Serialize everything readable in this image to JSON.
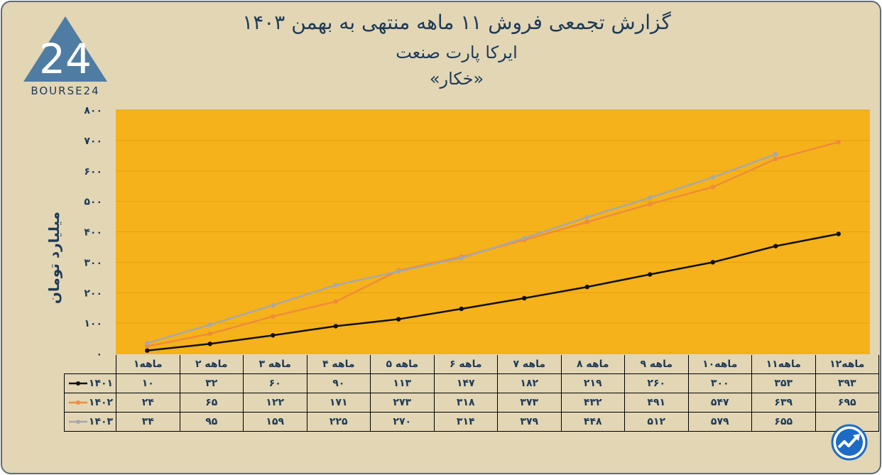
{
  "header": {
    "line1": "گزارش تجمعی فروش ۱۱ ماهه منتهی به بهمن ۱۴۰۳",
    "line2": "ایرکا پارت صنعت",
    "line3": "«خکار»"
  },
  "logo": {
    "text": "BOURSE24",
    "mark": "24",
    "icon": "bourse24-logo-icon"
  },
  "badge": {
    "icon": "trend-arrow-icon"
  },
  "colors": {
    "background": "#e2d6b5",
    "plot": "#f5b21b",
    "s1401": "#111111",
    "s1402": "#ef8c3a",
    "s1403": "#a8a8a8",
    "text": "#1f3a57"
  },
  "chart_data": {
    "type": "line",
    "ylabel": "میلیارد تومان",
    "ylim": [
      0,
      800
    ],
    "yticks": [
      "۰",
      "۱۰۰",
      "۲۰۰",
      "۳۰۰",
      "۴۰۰",
      "۵۰۰",
      "۶۰۰",
      "۷۰۰",
      "۸۰۰"
    ],
    "categories": [
      "۱ماهه",
      "۲ ماهه",
      "۳ ماهه",
      "۴ ماهه",
      "۵ ماهه",
      "۶ ماهه",
      "۷ ماهه",
      "۸ ماهه",
      "۹ ماهه",
      "۱۰ماهه",
      "۱۱ماهه",
      "۱۲ماهه"
    ],
    "series": [
      {
        "name": "۱۴۰۱",
        "values": [
          10,
          32,
          60,
          90,
          113,
          147,
          182,
          219,
          260,
          300,
          353,
          393
        ],
        "labels": [
          "۱۰",
          "۳۲",
          "۶۰",
          "۹۰",
          "۱۱۳",
          "۱۴۷",
          "۱۸۲",
          "۲۱۹",
          "۲۶۰",
          "۳۰۰",
          "۳۵۳",
          "۳۹۳"
        ]
      },
      {
        "name": "۱۴۰۲",
        "values": [
          24,
          65,
          122,
          171,
          273,
          318,
          373,
          432,
          491,
          547,
          639,
          695
        ],
        "labels": [
          "۲۴",
          "۶۵",
          "۱۲۲",
          "۱۷۱",
          "۲۷۳",
          "۳۱۸",
          "۳۷۳",
          "۴۳۲",
          "۴۹۱",
          "۵۴۷",
          "۶۳۹",
          "۶۹۵"
        ]
      },
      {
        "name": "۱۴۰۳",
        "values": [
          34,
          95,
          159,
          225,
          270,
          314,
          379,
          448,
          512,
          579,
          655,
          null
        ],
        "labels": [
          "۳۴",
          "۹۵",
          "۱۵۹",
          "۲۲۵",
          "۲۷۰",
          "۳۱۴",
          "۳۷۹",
          "۴۴۸",
          "۵۱۲",
          "۵۷۹",
          "۶۵۵",
          ""
        ]
      }
    ]
  }
}
